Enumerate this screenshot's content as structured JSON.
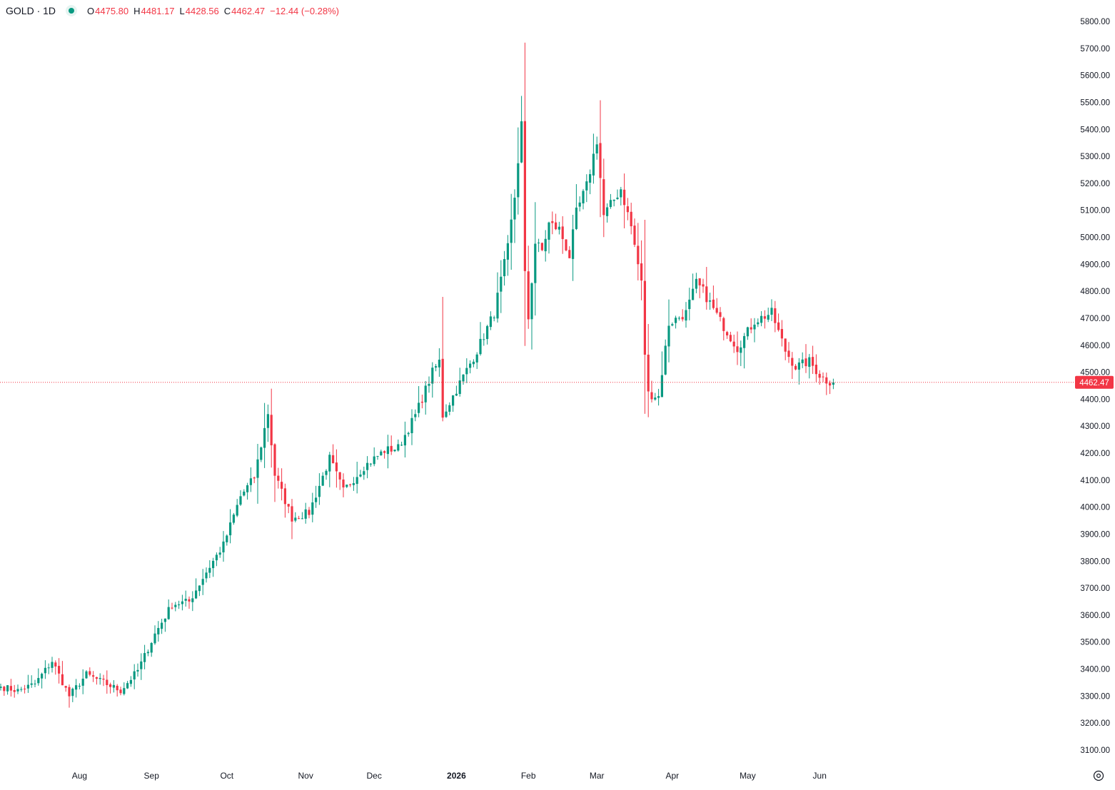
{
  "header": {
    "symbol": "GOLD · 1D",
    "open_label": "O",
    "open": "4475.80",
    "high_label": "H",
    "high": "4481.17",
    "low_label": "L",
    "low": "4428.56",
    "close_label": "C",
    "close": "4462.47",
    "change": "−12.44 (−0.28%)",
    "status_color": "#089981"
  },
  "colors": {
    "up": "#089981",
    "down": "#f23645",
    "price_line": "#f23645",
    "axis_text": "#131722"
  },
  "chart_data": {
    "type": "candlestick",
    "interval": "1D",
    "ylim": [
      3060,
      5830
    ],
    "y_ticks": [
      "3100.00",
      "3200.00",
      "3300.00",
      "3400.00",
      "3500.00",
      "3600.00",
      "3700.00",
      "3800.00",
      "3900.00",
      "4000.00",
      "4100.00",
      "4200.00",
      "4300.00",
      "4400.00",
      "4500.00",
      "4600.00",
      "4700.00",
      "4800.00",
      "4900.00",
      "5000.00",
      "5100.00",
      "5200.00",
      "5300.00",
      "5400.00",
      "5500.00",
      "5600.00",
      "5700.00",
      "5800.00"
    ],
    "x_ticks": [
      {
        "label": "Aug",
        "date": "2025-08-01",
        "bold": false
      },
      {
        "label": "Sep",
        "date": "2025-09-01",
        "bold": false
      },
      {
        "label": "Oct",
        "date": "2025-10-01",
        "bold": false
      },
      {
        "label": "Nov",
        "date": "2025-11-03",
        "bold": false
      },
      {
        "label": "Dec",
        "date": "2025-12-01",
        "bold": false
      },
      {
        "label": "2026",
        "date": "2026-01-02",
        "bold": true
      },
      {
        "label": "Feb",
        "date": "2026-02-02",
        "bold": false
      },
      {
        "label": "Mar",
        "date": "2026-03-02",
        "bold": false
      },
      {
        "label": "Apr",
        "date": "2026-04-01",
        "bold": false
      },
      {
        "label": "May",
        "date": "2026-05-01",
        "bold": false
      },
      {
        "label": "Jun",
        "date": "2026-06-01",
        "bold": false
      }
    ],
    "last_price": 4462.47,
    "last_price_label": "4462.47",
    "price_path": [
      [
        "2025-07-01",
        3335
      ],
      [
        "2025-07-08",
        3320
      ],
      [
        "2025-07-15",
        3345
      ],
      [
        "2025-07-22",
        3430
      ],
      [
        "2025-07-29",
        3300
      ],
      [
        "2025-08-05",
        3380
      ],
      [
        "2025-08-12",
        3350
      ],
      [
        "2025-08-19",
        3320
      ],
      [
        "2025-08-26",
        3395
      ],
      [
        "2025-09-02",
        3530
      ],
      [
        "2025-09-09",
        3640
      ],
      [
        "2025-09-16",
        3650
      ],
      [
        "2025-09-23",
        3760
      ],
      [
        "2025-09-30",
        3860
      ],
      [
        "2025-10-07",
        4040
      ],
      [
        "2025-10-13",
        4110
      ],
      [
        "2025-10-17",
        4350
      ],
      [
        "2025-10-21",
        4120
      ],
      [
        "2025-10-28",
        3960
      ],
      [
        "2025-11-04",
        3980
      ],
      [
        "2025-11-12",
        4180
      ],
      [
        "2025-11-18",
        4060
      ],
      [
        "2025-11-26",
        4150
      ],
      [
        "2025-12-04",
        4210
      ],
      [
        "2025-12-10",
        4220
      ],
      [
        "2025-12-17",
        4340
      ],
      [
        "2025-12-24",
        4500
      ],
      [
        "2025-12-26",
        4540
      ],
      [
        "2025-12-29",
        4340
      ],
      [
        "2026-01-05",
        4460
      ],
      [
        "2026-01-12",
        4580
      ],
      [
        "2026-01-19",
        4720
      ],
      [
        "2026-01-23",
        4960
      ],
      [
        "2026-01-27",
        5150
      ],
      [
        "2026-01-29",
        5420
      ],
      [
        "2026-01-30",
        4860
      ],
      [
        "2026-02-02",
        4700
      ],
      [
        "2026-02-04",
        4980
      ],
      [
        "2026-02-06",
        4950
      ],
      [
        "2026-02-10",
        5050
      ],
      [
        "2026-02-13",
        5030
      ],
      [
        "2026-02-18",
        4930
      ],
      [
        "2026-02-20",
        5090
      ],
      [
        "2026-02-25",
        5190
      ],
      [
        "2026-03-02",
        5360
      ],
      [
        "2026-03-04",
        5080
      ],
      [
        "2026-03-11",
        5180
      ],
      [
        "2026-03-16",
        5040
      ],
      [
        "2026-03-19",
        4830
      ],
      [
        "2026-03-20",
        4570
      ],
      [
        "2026-03-23",
        4420
      ],
      [
        "2026-03-26",
        4410
      ],
      [
        "2026-03-31",
        4680
      ],
      [
        "2026-04-07",
        4720
      ],
      [
        "2026-04-10",
        4830
      ],
      [
        "2026-04-14",
        4800
      ],
      [
        "2026-04-21",
        4690
      ],
      [
        "2026-04-28",
        4590
      ],
      [
        "2026-05-05",
        4690
      ],
      [
        "2026-05-12",
        4720
      ],
      [
        "2026-05-18",
        4580
      ],
      [
        "2026-05-21",
        4520
      ],
      [
        "2026-05-27",
        4540
      ],
      [
        "2026-06-01",
        4490
      ],
      [
        "2026-06-03",
        4470
      ],
      [
        "2026-06-05",
        4462
      ]
    ],
    "end_date": "2026-06-05"
  }
}
